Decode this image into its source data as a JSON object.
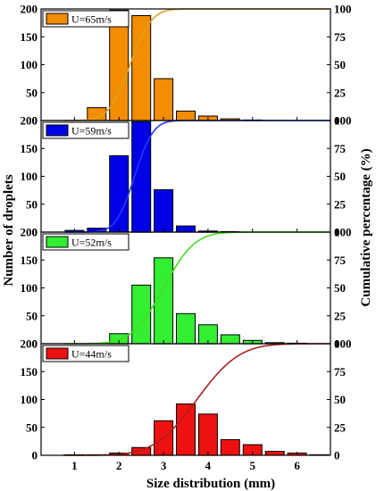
{
  "chart_data": {
    "type": "bar",
    "xlabel": "Size distribution (mm)",
    "ylabel_left": "Number of droplets",
    "ylabel_right": "Cumulative percentage (%)",
    "xlim": [
      0.25,
      6.75
    ],
    "x_ticks": [
      1,
      2,
      3,
      4,
      5,
      6
    ],
    "y_left_lim": [
      0,
      200
    ],
    "y_left_ticks": [
      0,
      50,
      100,
      150,
      200
    ],
    "y_right_lim": [
      0,
      100
    ],
    "y_right_ticks": [
      0,
      25,
      50,
      75,
      100
    ],
    "legend_placement": "top-left",
    "panels": [
      {
        "legend": "U=65m/s",
        "bar_color": "#f28c00",
        "curve_color": "#e0a020",
        "bars": [
          {
            "x": 1.5,
            "value": 23
          },
          {
            "x": 2.0,
            "value": 198
          },
          {
            "x": 2.5,
            "value": 188
          },
          {
            "x": 3.0,
            "value": 75
          },
          {
            "x": 3.5,
            "value": 17
          },
          {
            "x": 4.0,
            "value": 8
          },
          {
            "x": 4.5,
            "value": 3
          },
          {
            "x": 5.0,
            "value": 1
          }
        ],
        "cumulative": {
          "mu": 2.25,
          "sigma": 0.38
        }
      },
      {
        "legend": "U=59m/s",
        "bar_color": "#0000e6",
        "curve_color": "#1f3cff",
        "bars": [
          {
            "x": 1.0,
            "value": 3
          },
          {
            "x": 1.5,
            "value": 7
          },
          {
            "x": 2.0,
            "value": 137
          },
          {
            "x": 2.5,
            "value": 198
          },
          {
            "x": 3.0,
            "value": 76
          },
          {
            "x": 3.5,
            "value": 11
          },
          {
            "x": 4.0,
            "value": 2
          },
          {
            "x": 4.5,
            "value": 1
          }
        ],
        "cumulative": {
          "mu": 2.35,
          "sigma": 0.33
        }
      },
      {
        "legend": "U=52m/s",
        "bar_color": "#33ee33",
        "curve_color": "#44dd22",
        "bars": [
          {
            "x": 2.0,
            "value": 18
          },
          {
            "x": 2.5,
            "value": 105
          },
          {
            "x": 3.0,
            "value": 154
          },
          {
            "x": 3.5,
            "value": 54
          },
          {
            "x": 4.0,
            "value": 34
          },
          {
            "x": 4.5,
            "value": 16
          },
          {
            "x": 5.0,
            "value": 6
          },
          {
            "x": 5.5,
            "value": 2
          },
          {
            "x": 6.0,
            "value": 1
          }
        ],
        "cumulative": {
          "mu": 3.0,
          "sigma": 0.55
        }
      },
      {
        "legend": "U=44m/s",
        "bar_color": "#ee1111",
        "curve_color": "#a82020",
        "bars": [
          {
            "x": 1.0,
            "value": 1
          },
          {
            "x": 1.5,
            "value": 1
          },
          {
            "x": 2.0,
            "value": 4
          },
          {
            "x": 2.5,
            "value": 14
          },
          {
            "x": 3.0,
            "value": 62
          },
          {
            "x": 3.5,
            "value": 92
          },
          {
            "x": 4.0,
            "value": 74
          },
          {
            "x": 4.5,
            "value": 28
          },
          {
            "x": 5.0,
            "value": 19
          },
          {
            "x": 5.5,
            "value": 7
          },
          {
            "x": 6.0,
            "value": 4
          },
          {
            "x": 6.5,
            "value": 1
          }
        ],
        "cumulative": {
          "mu": 3.75,
          "sigma": 0.75
        }
      }
    ]
  }
}
